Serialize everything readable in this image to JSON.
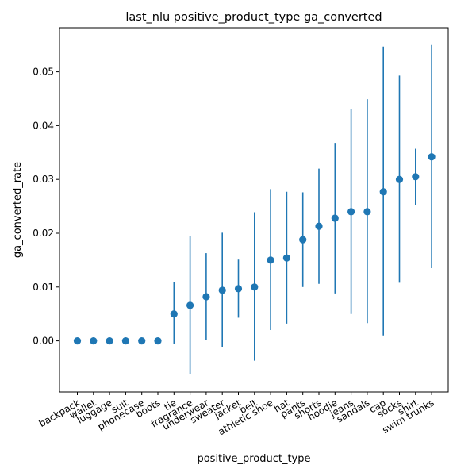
{
  "chart_data": {
    "type": "scatter",
    "title": "last_nlu positive_product_type ga_converted",
    "xlabel": "positive_product_type",
    "ylabel": "ga_converted_rate",
    "ylim": [
      -0.0095,
      0.0582
    ],
    "y_ticks": [
      "0.00",
      "0.01",
      "0.02",
      "0.03",
      "0.04",
      "0.05"
    ],
    "y_tick_values": [
      0.0,
      0.01,
      0.02,
      0.03,
      0.04,
      0.05
    ],
    "grid": false,
    "color": "#1f77b4",
    "categories": [
      "backpack",
      "wallet",
      "luggage",
      "suit",
      "phonecase",
      "boots",
      "tie",
      "fragrance",
      "underwear",
      "sweater",
      "jacket",
      "belt",
      "athletic shoe",
      "hat",
      "pants",
      "shorts",
      "hoodie",
      "jeans",
      "sandals",
      "cap",
      "socks",
      "shirt",
      "swim trunks"
    ],
    "series": [
      {
        "values": [
          0.0,
          0.0,
          0.0,
          0.0,
          0.0,
          0.0,
          0.005,
          0.0066,
          0.0082,
          0.0094,
          0.0097,
          0.01,
          0.015,
          0.0154,
          0.0188,
          0.0213,
          0.0228,
          0.024,
          0.024,
          0.0277,
          0.03,
          0.0305,
          0.0342
        ],
        "lower": [
          0.0,
          0.0,
          0.0,
          0.0,
          0.0,
          0.0,
          -0.0005,
          -0.0062,
          0.0002,
          -0.0012,
          0.0043,
          -0.0037,
          0.002,
          0.0032,
          0.01,
          0.0106,
          0.0088,
          0.005,
          0.0033,
          0.001,
          0.0108,
          0.0253,
          0.0135
        ],
        "upper": [
          0.0,
          0.0,
          0.0,
          0.0,
          0.0,
          0.0,
          0.0109,
          0.0194,
          0.0163,
          0.0201,
          0.0151,
          0.0239,
          0.0282,
          0.0277,
          0.0276,
          0.032,
          0.0368,
          0.043,
          0.0449,
          0.0547,
          0.0493,
          0.0357,
          0.055
        ]
      }
    ]
  }
}
